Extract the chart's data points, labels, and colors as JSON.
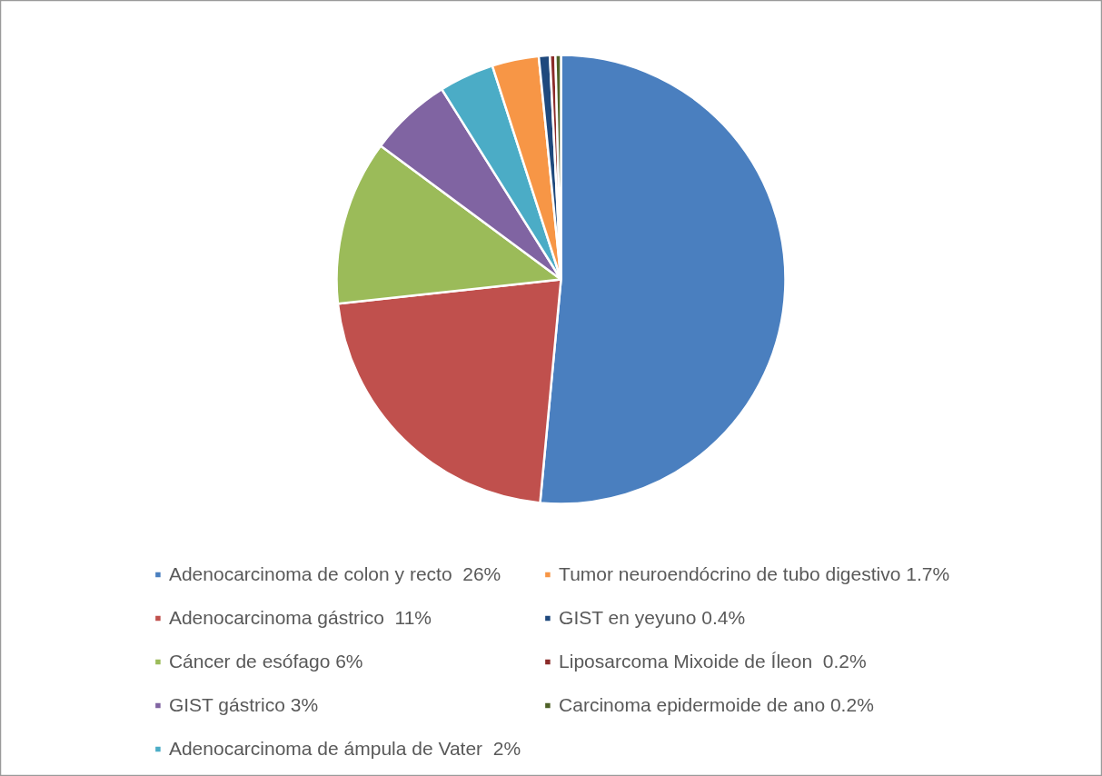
{
  "chart_data": {
    "type": "pie",
    "categories": [
      "Adenocarcinoma de colon y recto  26%",
      "Adenocarcinoma gástrico  11%",
      "Cáncer de esófago 6%",
      "GIST gástrico 3%",
      "Adenocarcinoma de ámpula de Vater  2%",
      "Tumor neuroendócrino de tubo digestivo 1.7%",
      "GIST en yeyuno 0.4%",
      "Liposarcoma Mixoide de Íleon  0.2%",
      "Carcinoma epidermoide de ano 0.2%"
    ],
    "values": [
      26,
      11,
      6,
      3,
      2,
      1.7,
      0.4,
      0.2,
      0.2
    ],
    "colors": [
      "#4a7fbf",
      "#c0504d",
      "#9bbb59",
      "#8064a2",
      "#4bacc6",
      "#f79646",
      "#1f497d",
      "#8b2c2a",
      "#4f6228"
    ],
    "legend": "bottom"
  }
}
